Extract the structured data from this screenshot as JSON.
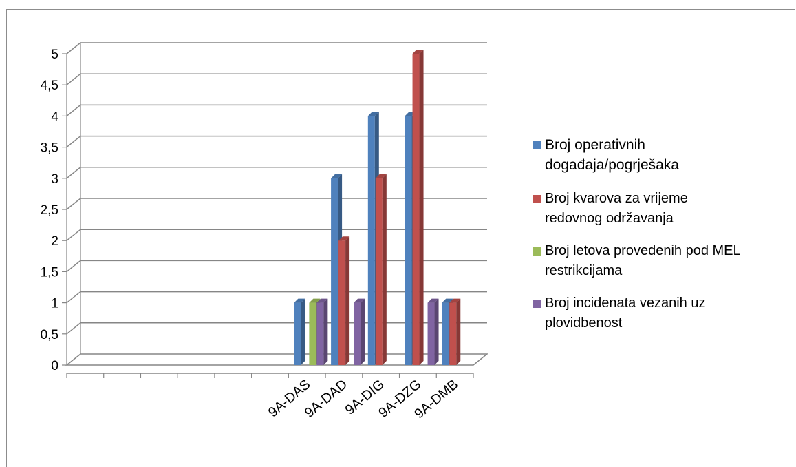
{
  "chart_data": {
    "type": "bar",
    "subtype": "3d-clustered-column",
    "title": "",
    "xlabel": "",
    "ylabel": "",
    "ylim": [
      0,
      5
    ],
    "yticks": [
      "0",
      "0,5",
      "1",
      "1,5",
      "2",
      "2,5",
      "3",
      "3,5",
      "4",
      "4,5",
      "5"
    ],
    "grid": true,
    "legend_position": "right",
    "categories": [
      "",
      "",
      "",
      "",
      "",
      "",
      "9A-DAS",
      "9A-DAD",
      "9A-DIG",
      "9A-DZG",
      "9A-DMB"
    ],
    "series": [
      {
        "name": "Broj operativnih događaja/pogrješaka",
        "color": "#4F81BD",
        "values": [
          null,
          null,
          null,
          null,
          null,
          null,
          1,
          3,
          4,
          4,
          1
        ]
      },
      {
        "name": "Broj kvarova  za vrijeme redovnog održavanja",
        "color": "#C0504D",
        "values": [
          null,
          null,
          null,
          null,
          null,
          null,
          null,
          2,
          3,
          5,
          1
        ]
      },
      {
        "name": "Broj letova provedenih pod MEL restrikcijama",
        "color": "#9BBB59",
        "values": [
          null,
          null,
          null,
          null,
          null,
          null,
          1,
          null,
          null,
          null,
          null
        ]
      },
      {
        "name": "Broj incidenata vezanih uz plovidbenost",
        "color": "#8064A2",
        "values": [
          null,
          null,
          null,
          null,
          null,
          null,
          1,
          1,
          null,
          1,
          null
        ]
      }
    ]
  },
  "legend": {
    "items": [
      {
        "label_1": "Broj operativnih",
        "label_2": "događaja/pogrješaka",
        "color": "#4F81BD"
      },
      {
        "label_1": "Broj kvarova  za vrijeme",
        "label_2": "redovnog održavanja",
        "color": "#C0504D"
      },
      {
        "label_1": "Broj letova provedenih pod MEL",
        "label_2": "restrikcijama",
        "color": "#9BBB59"
      },
      {
        "label_1": "Broj incidenata vezanih uz",
        "label_2": "plovidbenost",
        "color": "#8064A2"
      }
    ]
  }
}
